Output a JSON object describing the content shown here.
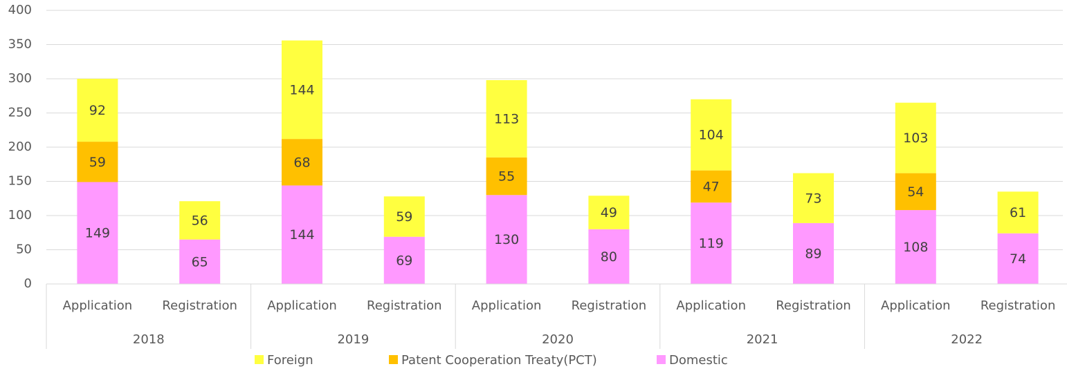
{
  "chart_data": {
    "type": "stacked_bar",
    "categories": [
      "Application",
      "Registration",
      "Application",
      "Registration",
      "Application",
      "Registration",
      "Application",
      "Registration",
      "Application",
      "Registration"
    ],
    "groups": [
      "2018",
      "2019",
      "2020",
      "2021",
      "2022"
    ],
    "series": [
      {
        "name": "Foreign",
        "color": "#ffff40",
        "values": [
          92,
          56,
          144,
          59,
          113,
          49,
          104,
          73,
          103,
          61
        ]
      },
      {
        "name": "Patent Cooperation Treaty(PCT)",
        "color": "#ffc000",
        "values": [
          59,
          null,
          68,
          null,
          55,
          null,
          47,
          null,
          54,
          null
        ]
      },
      {
        "name": "Domestic",
        "color": "#ff99ff",
        "values": [
          149,
          65,
          144,
          69,
          130,
          80,
          119,
          89,
          108,
          74
        ]
      }
    ],
    "ylim": [
      0,
      400
    ],
    "yticks": [
      0,
      50,
      100,
      150,
      200,
      250,
      300,
      350,
      400
    ],
    "grid": true,
    "legend": "bottom"
  }
}
